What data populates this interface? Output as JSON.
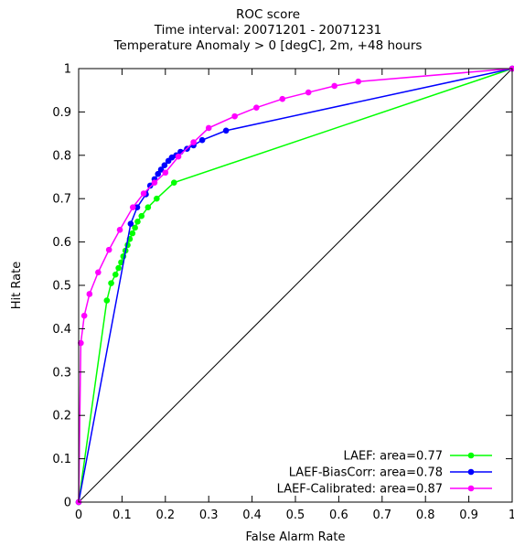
{
  "chart_data": {
    "type": "line",
    "title": "ROC score",
    "subtitle": "Time interval: 20071201 - 20071231",
    "subtitle2": "Temperature Anomaly > 0 [degC], 2m, +48 hours",
    "xlabel": "False Alarm Rate",
    "ylabel": "Hit Rate",
    "xlim": [
      0,
      1
    ],
    "ylim": [
      0,
      1
    ],
    "xticks": [
      "0",
      "0.1",
      "0.2",
      "0.3",
      "0.4",
      "0.5",
      "0.6",
      "0.7",
      "0.8",
      "0.9",
      "1"
    ],
    "yticks": [
      "0",
      "0.1",
      "0.2",
      "0.3",
      "0.4",
      "0.5",
      "0.6",
      "0.7",
      "0.8",
      "0.9",
      "1"
    ],
    "grid": false,
    "legend_position": "bottom-right",
    "diagonal": true,
    "series": [
      {
        "name": "LAEF: area=0.77",
        "color": "#00ff00",
        "points": [
          [
            0,
            0
          ],
          [
            0.065,
            0.465
          ],
          [
            0.075,
            0.505
          ],
          [
            0.085,
            0.525
          ],
          [
            0.092,
            0.54
          ],
          [
            0.098,
            0.553
          ],
          [
            0.103,
            0.567
          ],
          [
            0.108,
            0.58
          ],
          [
            0.113,
            0.593
          ],
          [
            0.118,
            0.607
          ],
          [
            0.124,
            0.62
          ],
          [
            0.13,
            0.633
          ],
          [
            0.136,
            0.647
          ],
          [
            0.145,
            0.66
          ],
          [
            0.16,
            0.68
          ],
          [
            0.18,
            0.7
          ],
          [
            0.22,
            0.737
          ],
          [
            1,
            1
          ]
        ]
      },
      {
        "name": "LAEF-BiasCorr: area=0.78",
        "color": "#0000ff",
        "points": [
          [
            0,
            0
          ],
          [
            0.12,
            0.642
          ],
          [
            0.135,
            0.68
          ],
          [
            0.155,
            0.71
          ],
          [
            0.165,
            0.73
          ],
          [
            0.175,
            0.745
          ],
          [
            0.183,
            0.757
          ],
          [
            0.19,
            0.767
          ],
          [
            0.198,
            0.777
          ],
          [
            0.207,
            0.787
          ],
          [
            0.215,
            0.795
          ],
          [
            0.225,
            0.8
          ],
          [
            0.235,
            0.808
          ],
          [
            0.25,
            0.815
          ],
          [
            0.265,
            0.823
          ],
          [
            0.285,
            0.835
          ],
          [
            0.34,
            0.857
          ],
          [
            1,
            1
          ]
        ]
      },
      {
        "name": "LAEF-Calibrated: area=0.87",
        "color": "#ff00ff",
        "points": [
          [
            0,
            0
          ],
          [
            0.005,
            0.367
          ],
          [
            0.013,
            0.43
          ],
          [
            0.025,
            0.48
          ],
          [
            0.045,
            0.53
          ],
          [
            0.07,
            0.582
          ],
          [
            0.095,
            0.628
          ],
          [
            0.125,
            0.68
          ],
          [
            0.15,
            0.712
          ],
          [
            0.175,
            0.737
          ],
          [
            0.2,
            0.76
          ],
          [
            0.23,
            0.797
          ],
          [
            0.265,
            0.83
          ],
          [
            0.3,
            0.863
          ],
          [
            0.36,
            0.89
          ],
          [
            0.41,
            0.91
          ],
          [
            0.47,
            0.93
          ],
          [
            0.53,
            0.945
          ],
          [
            0.59,
            0.96
          ],
          [
            0.645,
            0.97
          ],
          [
            1,
            1
          ]
        ]
      }
    ]
  }
}
